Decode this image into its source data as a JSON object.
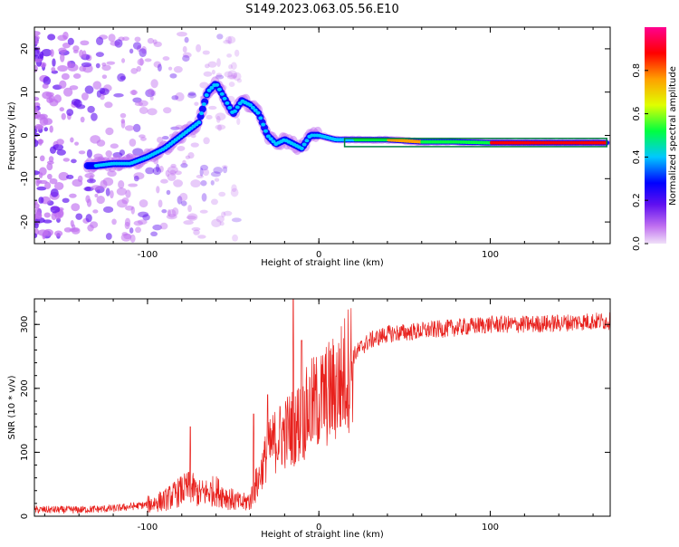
{
  "title": "S149.2023.063.05.56.E10",
  "chart_data": [
    {
      "type": "heatmap",
      "xlabel": "Height of straight line (km)",
      "ylabel": "Frequency (Hz)",
      "xlim": [
        -166,
        170
      ],
      "ylim": [
        -25,
        25
      ],
      "xticks": [
        -100,
        0,
        100
      ],
      "yticks": [
        -20,
        -10,
        0,
        10,
        20
      ],
      "grid": false,
      "colorbar": {
        "label": "Normalized spectral amplitude",
        "range": [
          0,
          1
        ],
        "ticks": [
          "0.0",
          "0.2",
          "0.4",
          "0.6",
          "0.8"
        ],
        "colors": [
          "#f0e0f8",
          "#c070f0",
          "#6010f0",
          "#0000ff",
          "#00c8ff",
          "#00ff40",
          "#e0ff00",
          "#ffa000",
          "#ff0000",
          "#ff0090"
        ]
      },
      "ridge": {
        "x": [
          -130,
          -120,
          -110,
          -100,
          -90,
          -80,
          -70,
          -65,
          -60,
          -50,
          -45,
          -40,
          -35,
          -30,
          -25,
          -20,
          -15,
          -10,
          -5,
          0,
          10,
          20,
          40,
          60,
          80,
          100,
          120,
          140,
          160,
          168
        ],
        "y": [
          -7,
          -6.5,
          -6.5,
          -5,
          -3,
          0,
          3,
          10,
          12,
          5,
          8,
          7,
          5,
          0,
          -2,
          -1,
          -2,
          -3,
          0,
          0,
          -1,
          -1,
          -1,
          -1.5,
          -1.5,
          -1.7,
          -1.7,
          -1.7,
          -1.7,
          -1.7
        ]
      }
    },
    {
      "type": "line",
      "xlabel": "Height of straight line (km)",
      "ylabel": "SNR (10 * v/v)",
      "xlim": [
        -166,
        170
      ],
      "ylim": [
        0,
        340
      ],
      "xticks": [
        -100,
        0,
        100
      ],
      "yticks": [
        0,
        100,
        200,
        300
      ],
      "color": "#e8201c",
      "grid": false,
      "trend": {
        "x": [
          -166,
          -140,
          -120,
          -100,
          -90,
          -80,
          -75,
          -70,
          -60,
          -50,
          -45,
          -40,
          -35,
          -30,
          -25,
          -20,
          -15,
          -10,
          -5,
          0,
          5,
          10,
          15,
          20,
          25,
          30,
          40,
          60,
          80,
          100,
          120,
          140,
          160,
          170
        ],
        "y": [
          10,
          10,
          12,
          18,
          25,
          40,
          45,
          35,
          40,
          25,
          20,
          25,
          60,
          100,
          120,
          130,
          140,
          150,
          170,
          180,
          190,
          200,
          220,
          250,
          265,
          275,
          285,
          290,
          295,
          300,
          300,
          302,
          305,
          305
        ]
      },
      "spikes": [
        {
          "x": -75,
          "y": 140
        },
        {
          "x": -38,
          "y": 160
        },
        {
          "x": -30,
          "y": 190
        },
        {
          "x": -15,
          "y": 340
        },
        {
          "x": -10,
          "y": 275
        }
      ]
    }
  ]
}
